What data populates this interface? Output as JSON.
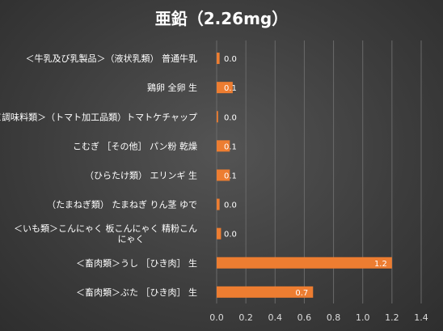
{
  "chart_data": {
    "type": "bar",
    "orientation": "horizontal",
    "title": "亜鉛（2.26mg）",
    "categories": [
      "＜牛乳及び乳製品＞（液状乳類）普通牛乳",
      "鶏卵 全卵 生",
      "＜調味料類＞（トマト加工品類）トマトケチャップ",
      "こむぎ ［その他］ パン粉 乾燥",
      "（ひらたけ類） エリンギ 生",
      "（たまねぎ類） たまねぎ りん茎 ゆで",
      "＜いも類＞こんにゃく 板こんにゃく 精粉こんにゃく",
      "＜畜肉類＞うし ［ひき肉］ 生",
      "＜畜肉類＞ぶた ［ひき肉］ 生"
    ],
    "category_lines": [
      [
        "＜牛乳及び乳製品＞（液状乳類） 普通牛乳"
      ],
      [
        "鶏卵  全卵  生"
      ],
      [
        "＜調味料類＞（トマト加工品類）トマトケチャップ"
      ],
      [
        "こむぎ ［その他］ パン粉  乾燥"
      ],
      [
        "（ひらたけ類） エリンギ  生"
      ],
      [
        "（たまねぎ類） たまねぎ  りん茎  ゆで"
      ],
      [
        "＜いも類＞こんにゃく  板こんにゃく  精粉こん",
        "にゃく"
      ],
      [
        "＜畜肉類＞うし ［ひき肉］ 生"
      ],
      [
        "＜畜肉類＞ぶた ［ひき肉］ 生"
      ]
    ],
    "values": [
      0.02,
      0.11,
      0.01,
      0.09,
      0.09,
      0.02,
      0.03,
      1.2,
      0.66
    ],
    "data_labels": [
      "0.0",
      "0.1",
      "0.0",
      "0.1",
      "0.1",
      "0.0",
      "0.0",
      "1.2",
      "0.7"
    ],
    "xlim": [
      0,
      1.4
    ],
    "x_ticks": [
      0,
      0.2,
      0.4,
      0.6,
      0.8,
      1.0,
      1.2,
      1.4
    ],
    "x_tick_labels": [
      "0.0",
      "0.2",
      "0.4",
      "0.6",
      "0.8",
      "1.0",
      "1.2",
      "1.4"
    ],
    "xlabel": "",
    "ylabel": "",
    "grid": true,
    "legend": "none",
    "bar_color": "#ed7d31"
  }
}
